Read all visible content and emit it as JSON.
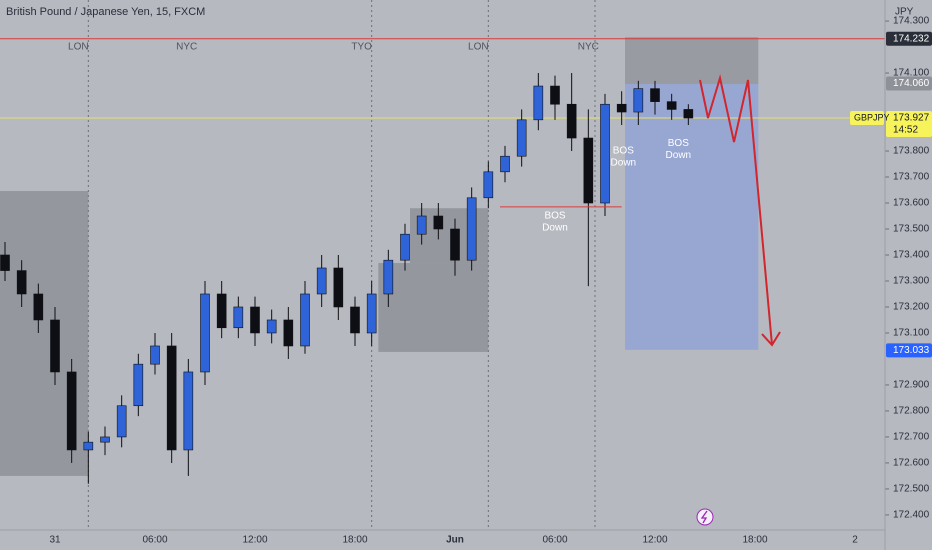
{
  "chart_data": {
    "type": "candlestick",
    "title": "British Pound / Japanese Yen, 15, FXCM",
    "currency": "JPY",
    "symbol": "GBPJPY",
    "countdown": "14:52",
    "xlim": [
      -3.3,
      49.8
    ],
    "ylim": [
      172.342,
      174.381
    ],
    "xticks": [
      {
        "value": 0,
        "label": "31"
      },
      {
        "value": 6,
        "label": "06:00"
      },
      {
        "value": 12,
        "label": "12:00"
      },
      {
        "value": 18,
        "label": "18:00"
      },
      {
        "value": 24,
        "label": "Jun"
      },
      {
        "value": 30,
        "label": "06:00"
      },
      {
        "value": 36,
        "label": "12:00"
      },
      {
        "value": 42,
        "label": "18:00"
      },
      {
        "value": 48,
        "label": "2"
      }
    ],
    "yticks": [
      {
        "value": 172.4,
        "label": "172.400"
      },
      {
        "value": 172.5,
        "label": "172.500"
      },
      {
        "value": 172.6,
        "label": "172.600"
      },
      {
        "value": 172.7,
        "label": "172.700"
      },
      {
        "value": 172.8,
        "label": "172.800"
      },
      {
        "value": 172.9,
        "label": "172.900"
      },
      {
        "value": 173.1,
        "label": "173.100"
      },
      {
        "value": 173.2,
        "label": "173.200"
      },
      {
        "value": 173.3,
        "label": "173.300"
      },
      {
        "value": 173.4,
        "label": "173.400"
      },
      {
        "value": 173.5,
        "label": "173.500"
      },
      {
        "value": 173.6,
        "label": "173.600"
      },
      {
        "value": 173.7,
        "label": "173.700"
      },
      {
        "value": 173.8,
        "label": "173.800"
      },
      {
        "value": 174.1,
        "label": "174.100"
      },
      {
        "value": 174.3,
        "label": "174.300"
      }
    ],
    "up_color": "#2f64d8",
    "down_color": "#0e0f14",
    "x": [
      -3,
      -2,
      -1,
      0,
      1,
      2,
      3,
      4,
      5,
      6,
      7,
      8,
      9,
      10,
      11,
      12,
      13,
      14,
      15,
      16,
      17,
      18,
      19,
      20,
      21,
      22,
      23,
      24,
      25,
      26,
      27,
      28,
      29,
      30,
      31,
      32,
      33,
      34,
      35,
      36,
      37,
      38
    ],
    "open": [
      173.4,
      173.34,
      173.25,
      173.15,
      172.95,
      172.65,
      172.68,
      172.7,
      172.82,
      172.98,
      173.05,
      172.65,
      172.95,
      173.25,
      173.12,
      173.2,
      173.1,
      173.15,
      173.05,
      173.25,
      173.35,
      173.2,
      173.1,
      173.25,
      173.38,
      173.48,
      173.55,
      173.5,
      173.38,
      173.62,
      173.72,
      173.78,
      173.92,
      174.05,
      173.98,
      173.85,
      173.6,
      173.98,
      173.95,
      174.04,
      173.99,
      173.96
    ],
    "high": [
      173.45,
      173.38,
      173.29,
      173.2,
      173.0,
      172.72,
      172.74,
      172.86,
      173.02,
      173.1,
      173.1,
      173.0,
      173.3,
      173.3,
      173.24,
      173.24,
      173.19,
      173.2,
      173.3,
      173.4,
      173.4,
      173.24,
      173.3,
      173.42,
      173.52,
      173.6,
      173.6,
      173.54,
      173.66,
      173.76,
      173.82,
      173.96,
      174.1,
      174.09,
      174.1,
      173.96,
      174.02,
      174.03,
      174.07,
      174.07,
      174.02,
      173.98
    ],
    "low": [
      173.3,
      173.2,
      173.1,
      172.9,
      172.6,
      172.52,
      172.63,
      172.66,
      172.78,
      172.94,
      172.6,
      172.55,
      172.9,
      173.08,
      173.08,
      173.05,
      173.06,
      173.0,
      173.02,
      173.2,
      173.15,
      173.05,
      173.05,
      173.2,
      173.34,
      173.44,
      173.46,
      173.32,
      173.34,
      173.58,
      173.68,
      173.74,
      173.88,
      173.92,
      173.8,
      173.28,
      173.55,
      173.9,
      173.9,
      173.94,
      173.92,
      173.9
    ],
    "close": [
      173.34,
      173.25,
      173.15,
      172.95,
      172.65,
      172.68,
      172.7,
      172.82,
      172.98,
      173.05,
      172.65,
      172.95,
      173.25,
      173.12,
      173.2,
      173.1,
      173.15,
      173.05,
      173.25,
      173.35,
      173.2,
      173.1,
      173.25,
      173.38,
      173.48,
      173.55,
      173.5,
      173.38,
      173.62,
      173.72,
      173.78,
      173.92,
      174.05,
      173.98,
      173.85,
      173.6,
      173.98,
      173.95,
      174.04,
      173.99,
      173.96,
      173.927
    ],
    "zones": [
      {
        "x": [
          -3.3,
          2
        ],
        "y": [
          172.55,
          173.646
        ],
        "color": "#8a8c93"
      },
      {
        "x": [
          19.4,
          26
        ],
        "y": [
          173.027,
          173.369
        ],
        "color": "#8a8c93"
      },
      {
        "x": [
          21.3,
          26
        ],
        "y": [
          173.369,
          173.58
        ],
        "color": "#8a8c93"
      },
      {
        "x": [
          34.2,
          42.2
        ],
        "y": [
          174.058,
          174.238
        ],
        "color": "#8f9198"
      },
      {
        "x": [
          34.2,
          42.2
        ],
        "y": [
          173.035,
          174.058
        ],
        "color": "#8ea2d6"
      }
    ],
    "sessions": [
      {
        "label": "LON",
        "x": 1.4,
        "line": 2
      },
      {
        "label": "NYC",
        "x": 7.9
      },
      {
        "label": "TYO",
        "x": 18.4,
        "line": 19
      },
      {
        "label": "LON",
        "x": 25.4,
        "line": 26
      },
      {
        "label": "NYC",
        "x": 32,
        "line": 32.4
      }
    ],
    "bos": [
      {
        "text": [
          "BOS",
          "Down"
        ],
        "x": 30,
        "y": 173.55,
        "line": [
          26.7,
          34
        ],
        "line_y": 173.585
      },
      {
        "text": [
          "BOS",
          "Down"
        ],
        "x": 34.1,
        "y": 173.8
      },
      {
        "text": [
          "BOS",
          "Down"
        ],
        "x": 37.4,
        "y": 173.83
      }
    ],
    "price_lines": [
      {
        "value": 174.232,
        "color": "#d93b3b"
      },
      {
        "value": 173.927,
        "color": "#e6e06a"
      }
    ],
    "price_tags": [
      {
        "value": 174.232,
        "label": "174.232",
        "bg": "#2a2e39",
        "fg": "#ffffff"
      },
      {
        "value": 174.06,
        "label": "174.060",
        "bg": "#8f9198",
        "fg": "#ffffff"
      },
      {
        "value": 173.927,
        "label": "173.927",
        "bg": "#f7f35a",
        "fg": "#131722"
      },
      {
        "value": 173.033,
        "label": "173.033",
        "bg": "#2962ff",
        "fg": "#ffffff"
      }
    ]
  }
}
